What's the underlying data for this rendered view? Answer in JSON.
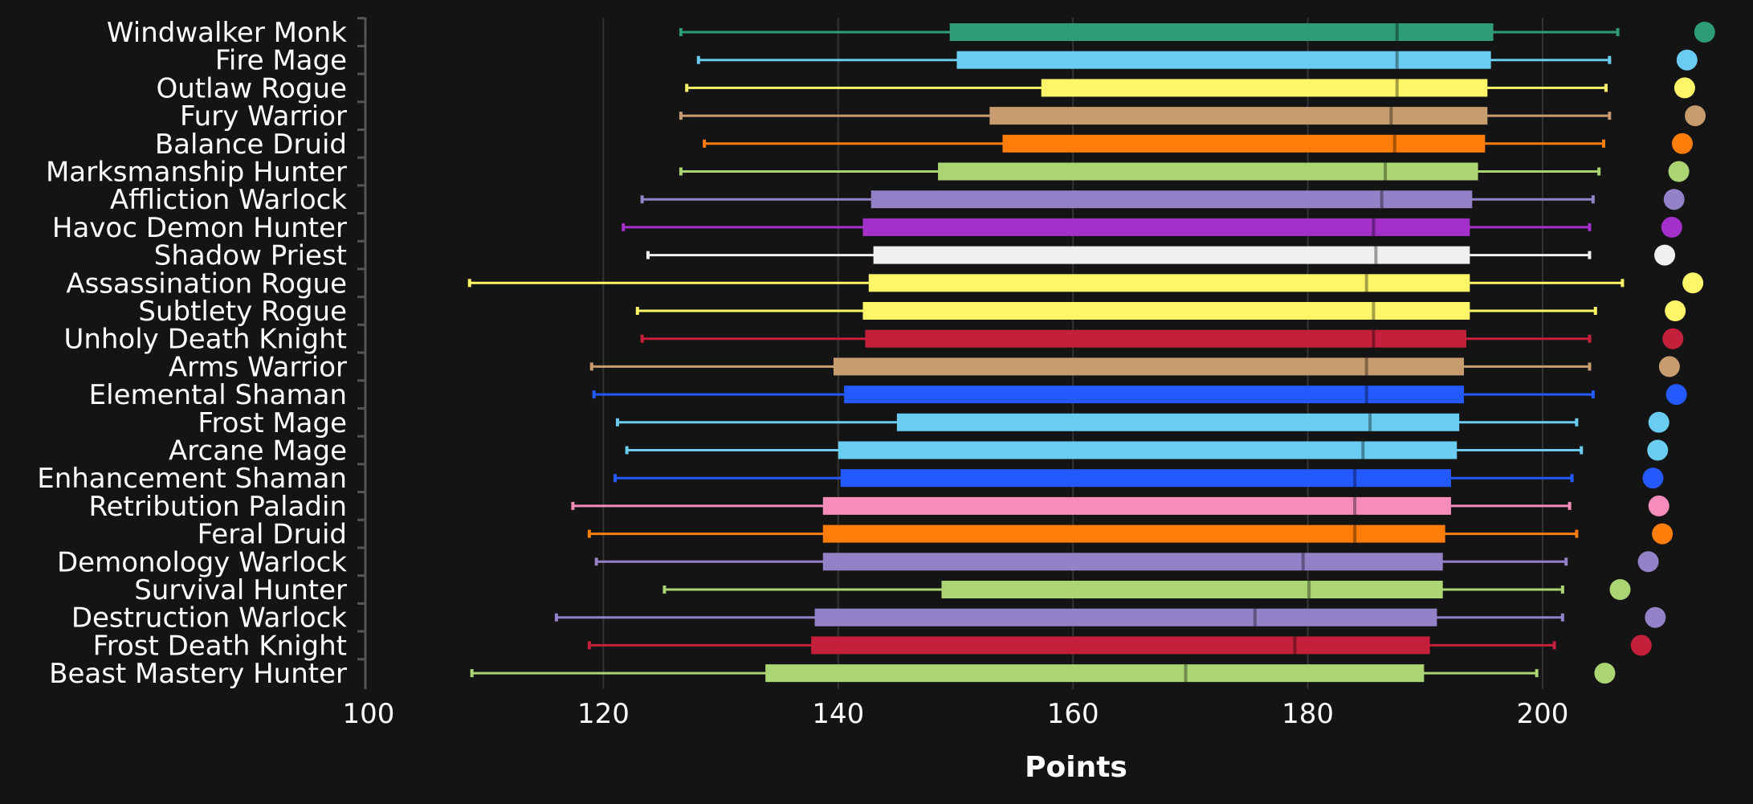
{
  "chart_data": {
    "type": "boxplot",
    "title": "",
    "xlabel": "Points",
    "ylabel": "",
    "xlim": [
      100,
      212
    ],
    "xticks": [
      100,
      120,
      140,
      160,
      180,
      200
    ],
    "grid": "vertical",
    "legend": "none",
    "series_fields": [
      "min",
      "q1",
      "median",
      "q3",
      "max",
      "top"
    ],
    "categories": [
      {
        "name": "Windwalker Monk",
        "color": "#2e9c78",
        "min": 126.6,
        "q1": 149.5,
        "median": 187.6,
        "q3": 195.8,
        "max": 206.4,
        "top": 213.8
      },
      {
        "name": "Fire Mage",
        "color": "#69ccf0",
        "min": 128.1,
        "q1": 150.1,
        "median": 187.6,
        "q3": 195.6,
        "max": 205.7,
        "top": 212.3
      },
      {
        "name": "Outlaw Rogue",
        "color": "#fff569",
        "min": 127.1,
        "q1": 157.3,
        "median": 187.6,
        "q3": 195.3,
        "max": 205.4,
        "top": 212.1
      },
      {
        "name": "Fury Warrior",
        "color": "#c79c6e",
        "min": 126.6,
        "q1": 152.9,
        "median": 187.1,
        "q3": 195.3,
        "max": 205.7,
        "top": 213.0
      },
      {
        "name": "Balance Druid",
        "color": "#ff7d0a",
        "min": 128.6,
        "q1": 154.0,
        "median": 187.4,
        "q3": 195.1,
        "max": 205.2,
        "top": 211.9
      },
      {
        "name": "Marksmanship Hunter",
        "color": "#abd473",
        "min": 126.6,
        "q1": 148.5,
        "median": 186.6,
        "q3": 194.5,
        "max": 204.8,
        "top": 211.6
      },
      {
        "name": "Affliction Warlock",
        "color": "#9482c9",
        "min": 123.3,
        "q1": 142.8,
        "median": 186.3,
        "q3": 194.0,
        "max": 204.3,
        "top": 211.2
      },
      {
        "name": "Havoc Demon Hunter",
        "color": "#a330c9",
        "min": 121.7,
        "q1": 142.1,
        "median": 185.6,
        "q3": 193.8,
        "max": 204.0,
        "top": 211.0
      },
      {
        "name": "Shadow Priest",
        "color": "#f0f0f0",
        "min": 123.8,
        "q1": 143.0,
        "median": 185.8,
        "q3": 193.8,
        "max": 204.0,
        "top": 210.4
      },
      {
        "name": "Assassination Rogue",
        "color": "#fff569",
        "min": 108.6,
        "q1": 142.6,
        "median": 185.0,
        "q3": 193.8,
        "max": 206.8,
        "top": 212.8
      },
      {
        "name": "Subtlety Rogue",
        "color": "#fff569",
        "min": 122.9,
        "q1": 142.1,
        "median": 185.6,
        "q3": 193.8,
        "max": 204.5,
        "top": 211.3
      },
      {
        "name": "Unholy Death Knight",
        "color": "#c41f3b",
        "min": 123.3,
        "q1": 142.3,
        "median": 185.6,
        "q3": 193.5,
        "max": 204.0,
        "top": 211.1
      },
      {
        "name": "Arms Warrior",
        "color": "#c79c6e",
        "min": 119.0,
        "q1": 139.6,
        "median": 185.0,
        "q3": 193.3,
        "max": 204.0,
        "top": 210.8
      },
      {
        "name": "Elemental Shaman",
        "color": "#2459ff",
        "min": 119.2,
        "q1": 140.5,
        "median": 185.0,
        "q3": 193.3,
        "max": 204.3,
        "top": 211.4
      },
      {
        "name": "Frost Mage",
        "color": "#69ccf0",
        "min": 121.2,
        "q1": 145.0,
        "median": 185.3,
        "q3": 192.9,
        "max": 202.9,
        "top": 209.9
      },
      {
        "name": "Arcane Mage",
        "color": "#69ccf0",
        "min": 122.0,
        "q1": 140.0,
        "median": 184.7,
        "q3": 192.7,
        "max": 203.3,
        "top": 209.8
      },
      {
        "name": "Enhancement Shaman",
        "color": "#2459ff",
        "min": 121.0,
        "q1": 140.2,
        "median": 184.0,
        "q3": 192.2,
        "max": 202.5,
        "top": 209.4
      },
      {
        "name": "Retribution Paladin",
        "color": "#f58cba",
        "min": 117.4,
        "q1": 138.7,
        "median": 184.0,
        "q3": 192.2,
        "max": 202.3,
        "top": 209.9
      },
      {
        "name": "Feral Druid",
        "color": "#ff7d0a",
        "min": 118.8,
        "q1": 138.7,
        "median": 184.0,
        "q3": 191.7,
        "max": 202.9,
        "top": 210.2
      },
      {
        "name": "Demonology Warlock",
        "color": "#9482c9",
        "min": 119.4,
        "q1": 138.7,
        "median": 179.6,
        "q3": 191.5,
        "max": 202.0,
        "top": 209.0
      },
      {
        "name": "Survival Hunter",
        "color": "#abd473",
        "min": 125.2,
        "q1": 148.8,
        "median": 180.1,
        "q3": 191.5,
        "max": 201.7,
        "top": 206.6
      },
      {
        "name": "Destruction Warlock",
        "color": "#9482c9",
        "min": 116.0,
        "q1": 138.0,
        "median": 175.5,
        "q3": 191.0,
        "max": 201.7,
        "top": 209.6
      },
      {
        "name": "Frost Death Knight",
        "color": "#c41f3b",
        "min": 118.8,
        "q1": 137.7,
        "median": 178.9,
        "q3": 190.4,
        "max": 201.0,
        "top": 208.4
      },
      {
        "name": "Beast Mastery Hunter",
        "color": "#abd473",
        "min": 108.8,
        "q1": 133.8,
        "median": 169.6,
        "q3": 189.9,
        "max": 199.5,
        "top": 205.3
      }
    ]
  }
}
